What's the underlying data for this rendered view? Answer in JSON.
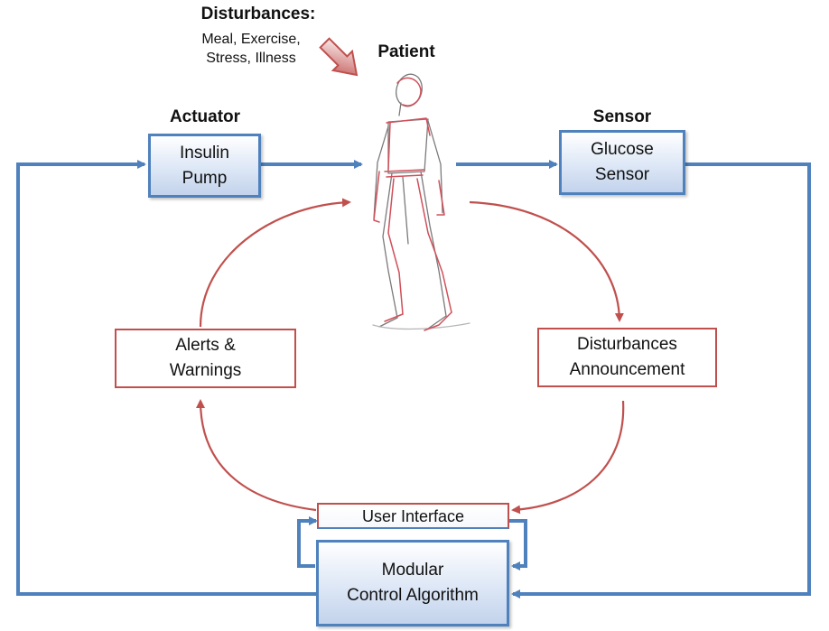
{
  "disturbances": {
    "title": "Disturbances:",
    "line1": "Meal, Exercise,",
    "line2": "Stress, Illness"
  },
  "patient": {
    "label": "Patient"
  },
  "actuator": {
    "heading": "Actuator",
    "line1": "Insulin",
    "line2": "Pump"
  },
  "sensor": {
    "heading": "Sensor",
    "line1": "Glucose",
    "line2": "Sensor"
  },
  "alerts": {
    "line1": "Alerts &",
    "line2": "Warnings"
  },
  "announcement": {
    "line1": "Disturbances",
    "line2": "Announcement"
  },
  "user_interface": {
    "label": "User Interface"
  },
  "controller": {
    "line1": "Modular",
    "line2": "Control Algorithm"
  },
  "colors": {
    "blue": "#4f81bd",
    "red": "#c0504d",
    "figure_red": "#d0505a",
    "figure_gray": "#7a7a7a"
  }
}
